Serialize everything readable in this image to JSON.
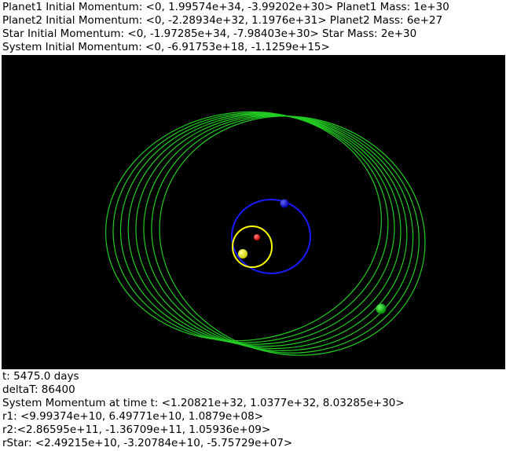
{
  "header": {
    "lines": [
      "Planet1 Initial Momentum: <0, 1.99574e+34, -3.99202e+30> Planet1 Mass: 1e+30",
      "Planet2 Initial Momentum: <0, -2.28934e+32, 1.1976e+31> Planet2 Mass: 6e+27",
      "Star Initial Momentum: <0, -1.97285e+34, -7.98403e+30> Star Mass: 2e+30",
      "System Initial Momentum: <0, -6.91753e+18, -1.1259e+15>"
    ]
  },
  "scene": {
    "background_color": "#000000",
    "orbit_colors": {
      "star": "#ffff00",
      "planet1": "#1a1aff",
      "planet2": "#22cc22"
    },
    "body_colors": {
      "star": "#ff0000",
      "planet1": "#ffff00",
      "planet2": "#0000ff",
      "outer": "#00cc00"
    }
  },
  "footer": {
    "lines": [
      "t: 5475.0 days",
      "deltaT: 86400",
      "System Momentum at time t: <1.20821e+32, 1.0377e+32, 8.03285e+30>",
      "r1: <9.99374e+10, 6.49771e+10, 1.0879e+08>",
      "r2:<2.86595e+11, -1.36709e+11, 1.05936e+09>",
      "rStar: <2.49215e+10, -3.20784e+10, -5.75729e+07>"
    ]
  }
}
